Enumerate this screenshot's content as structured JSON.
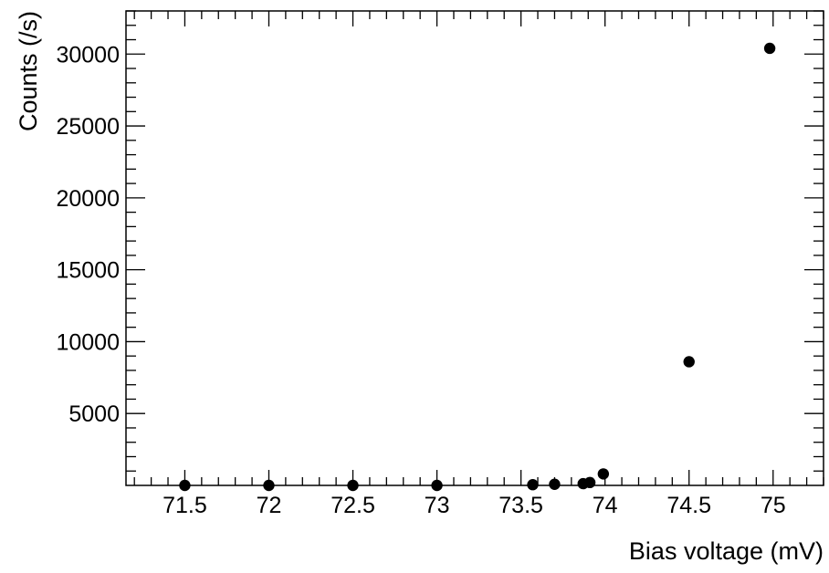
{
  "chart_data": {
    "type": "scatter",
    "title": "",
    "xlabel": "Bias voltage (mV)",
    "ylabel": "Counts (/s)",
    "xlim": [
      71.15,
      75.3
    ],
    "ylim": [
      0,
      33000
    ],
    "x_ticks": [
      71.5,
      72,
      72.5,
      73,
      73.5,
      74,
      74.5,
      75
    ],
    "x_tick_labels": [
      "71.5",
      "72",
      "72.5",
      "73",
      "73.5",
      "74",
      "74.5",
      "75"
    ],
    "y_ticks": [
      5000,
      10000,
      15000,
      20000,
      25000,
      30000
    ],
    "y_tick_labels": [
      "5000",
      "10000",
      "15000",
      "20000",
      "25000",
      "30000"
    ],
    "grid": false,
    "marker_color": "#000000",
    "series": [
      {
        "x": [
          71.5,
          72.0,
          72.5,
          73.0,
          73.57,
          73.7,
          73.87,
          73.91,
          73.99,
          74.5,
          74.98
        ],
        "y": [
          0,
          0,
          0,
          0,
          50,
          80,
          120,
          200,
          800,
          8600,
          30400
        ]
      }
    ]
  }
}
